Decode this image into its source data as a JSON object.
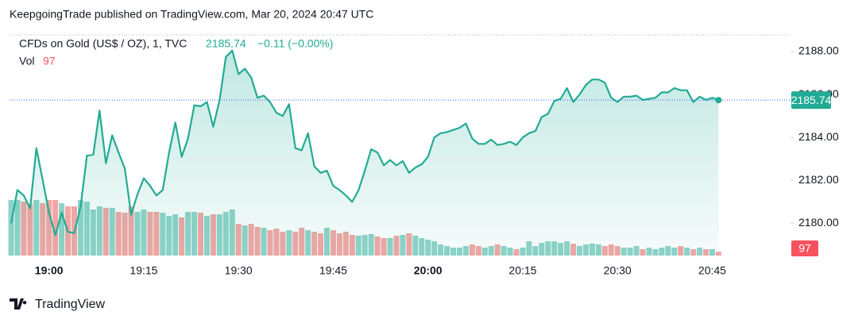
{
  "header": {
    "text": "KeepgoingTrade published on TradingView.com, Mar 20, 2024 20:47 UTC"
  },
  "footer": {
    "brand": "TradingView"
  },
  "chart_data": {
    "type": "line",
    "change": "−0.11 (−0.00%)",
    "categories": [
      null,
      null,
      null,
      null,
      null,
      null,
      "19:00",
      null,
      null,
      null,
      null,
      null,
      null,
      null,
      null,
      null,
      null,
      null,
      null,
      null,
      null,
      "19:15",
      null,
      null,
      null,
      null,
      null,
      null,
      null,
      null,
      null,
      null,
      null,
      null,
      null,
      null,
      "19:30",
      null,
      null,
      null,
      null,
      null,
      null,
      null,
      null,
      null,
      null,
      null,
      null,
      null,
      null,
      "19:45",
      null,
      null,
      null,
      null,
      null,
      null,
      null,
      null,
      null,
      null,
      null,
      null,
      null,
      null,
      "20:00",
      null,
      null,
      null,
      null,
      null,
      null,
      null,
      null,
      null,
      null,
      null,
      null,
      null,
      null,
      "20:15",
      null,
      null,
      null,
      null,
      null,
      null,
      null,
      null,
      null,
      null,
      null,
      null,
      null,
      null,
      "20:30",
      null,
      null,
      null,
      null,
      null,
      null,
      null,
      null,
      null,
      null,
      null,
      null,
      null,
      null,
      "20:45",
      null
    ],
    "series": [
      {
        "name": "CFDs on Gold (US$ / OZ), 1, TVC",
        "type": "line",
        "color": "#22ab94",
        "values": [
          2180.0,
          2181.55,
          2181.3,
          2180.7,
          2183.5,
          2182.0,
          2180.5,
          2179.45,
          2180.5,
          2179.6,
          2179.55,
          2180.8,
          2183.15,
          2183.2,
          2185.25,
          2182.8,
          2184.1,
          2183.3,
          2182.55,
          2180.4,
          2181.35,
          2182.1,
          2181.75,
          2181.3,
          2181.55,
          2183.3,
          2184.7,
          2183.1,
          2183.95,
          2185.5,
          2185.45,
          2185.65,
          2184.5,
          2185.75,
          2187.75,
          2188.05,
          2186.95,
          2187.2,
          2186.8,
          2185.85,
          2185.95,
          2185.65,
          2185.15,
          2185.0,
          2185.55,
          2183.5,
          2183.4,
          2184.2,
          2182.65,
          2182.35,
          2182.45,
          2181.75,
          2181.55,
          2181.3,
          2181.0,
          2181.55,
          2182.45,
          2183.45,
          2183.3,
          2182.7,
          2182.95,
          2182.7,
          2182.9,
          2182.35,
          2182.6,
          2182.75,
          2183.1,
          2184.0,
          2184.2,
          2184.25,
          2184.35,
          2184.45,
          2184.65,
          2183.95,
          2183.7,
          2183.7,
          2183.9,
          2183.65,
          2183.7,
          2183.8,
          2183.65,
          2184.0,
          2184.2,
          2184.3,
          2184.95,
          2185.1,
          2185.7,
          2185.8,
          2186.3,
          2185.65,
          2186.0,
          2186.45,
          2186.7,
          2186.7,
          2186.55,
          2185.85,
          2185.65,
          2185.9,
          2185.9,
          2185.95,
          2185.75,
          2185.8,
          2185.85,
          2186.1,
          2186.1,
          2186.3,
          2186.2,
          2186.2,
          2185.65,
          2185.9,
          2185.75,
          2185.85,
          2185.74
        ]
      },
      {
        "name": "Vol",
        "type": "bar",
        "axis": "y2",
        "up_color": "#8fd3c8",
        "down_color": "#f3a6a4",
        "label_color": "#f7525f",
        "values": [
          1400,
          1400,
          1360,
          1300,
          1400,
          1320,
          1400,
          1400,
          1320,
          1240,
          1240,
          1400,
          1360,
          1160,
          1240,
          1200,
          1200,
          1100,
          1080,
          1240,
          1100,
          1160,
          1100,
          1100,
          1080,
          1000,
          1040,
          960,
          1100,
          1100,
          1080,
          1000,
          1040,
          1040,
          1100,
          1160,
          800,
          760,
          800,
          720,
          700,
          640,
          680,
          600,
          640,
          600,
          700,
          640,
          600,
          560,
          700,
          640,
          560,
          600,
          520,
          500,
          520,
          540,
          480,
          440,
          440,
          500,
          520,
          560,
          500,
          440,
          400,
          360,
          280,
          240,
          200,
          200,
          240,
          280,
          240,
          200,
          240,
          280,
          240,
          200,
          160,
          200,
          360,
          240,
          320,
          360,
          360,
          320,
          360,
          300,
          240,
          280,
          300,
          280,
          240,
          280,
          240,
          200,
          200,
          240,
          160,
          200,
          160,
          200,
          240,
          200,
          240,
          200,
          160,
          200,
          160,
          160,
          97
        ]
      }
    ],
    "ylim": [
      2178.5,
      2188.85
    ],
    "yticks": [
      {
        "value": 2180,
        "label": "2180.00"
      },
      {
        "value": 2182,
        "label": "2182.00"
      },
      {
        "value": 2184,
        "label": "2184.00"
      },
      {
        "value": 2186,
        "label": "2186.00"
      },
      {
        "value": 2188,
        "label": "2188.00"
      }
    ],
    "y2lim": [
      0,
      5600
    ]
  }
}
